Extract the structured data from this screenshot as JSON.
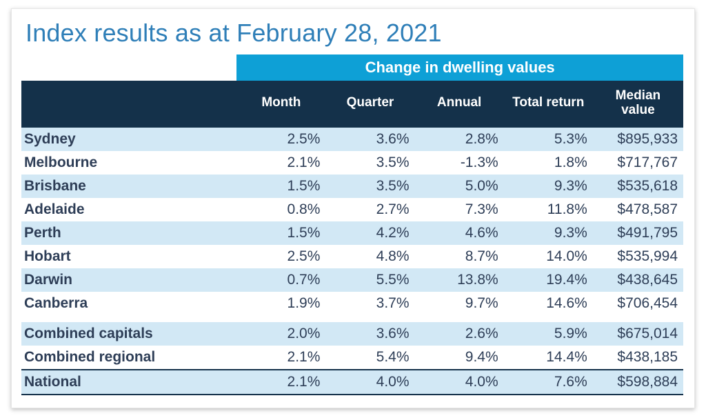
{
  "style": {
    "title_color": "#2f7fb8",
    "super_header_bg": "#0ea0d6",
    "header_row_bg": "#14314a",
    "header_text_color": "#ffffff",
    "row_label_color": "#2e3e57",
    "cell_text_color": "#2e3e57",
    "stripe_color": "#d2e8f5",
    "national_border_color": "#14314a",
    "title_fontsize": 36,
    "header_fontsize": 19,
    "body_fontsize": 21
  },
  "title": "Index results as at February 28, 2021",
  "table": {
    "super_header": "Change in dwelling values",
    "columns": [
      "Month",
      "Quarter",
      "Annual",
      "Total return",
      "Median\nvalue"
    ],
    "rows": [
      {
        "label": "Sydney",
        "month": "2.5%",
        "quarter": "3.6%",
        "annual": "2.8%",
        "total_return": "5.3%",
        "median_value": "$895,933"
      },
      {
        "label": "Melbourne",
        "month": "2.1%",
        "quarter": "3.5%",
        "annual": "-1.3%",
        "total_return": "1.8%",
        "median_value": "$717,767"
      },
      {
        "label": "Brisbane",
        "month": "1.5%",
        "quarter": "3.5%",
        "annual": "5.0%",
        "total_return": "9.3%",
        "median_value": "$535,618"
      },
      {
        "label": "Adelaide",
        "month": "0.8%",
        "quarter": "2.7%",
        "annual": "7.3%",
        "total_return": "11.8%",
        "median_value": "$478,587"
      },
      {
        "label": "Perth",
        "month": "1.5%",
        "quarter": "4.2%",
        "annual": "4.6%",
        "total_return": "9.3%",
        "median_value": "$491,795"
      },
      {
        "label": "Hobart",
        "month": "2.5%",
        "quarter": "4.8%",
        "annual": "8.7%",
        "total_return": "14.0%",
        "median_value": "$535,994"
      },
      {
        "label": "Darwin",
        "month": "0.7%",
        "quarter": "5.5%",
        "annual": "13.8%",
        "total_return": "19.4%",
        "median_value": "$438,645"
      },
      {
        "label": "Canberra",
        "month": "1.9%",
        "quarter": "3.7%",
        "annual": "9.7%",
        "total_return": "14.6%",
        "median_value": "$706,454"
      }
    ],
    "summary_rows": [
      {
        "label": "Combined capitals",
        "month": "2.0%",
        "quarter": "3.6%",
        "annual": "2.6%",
        "total_return": "5.9%",
        "median_value": "$675,014"
      },
      {
        "label": "Combined regional",
        "month": "2.1%",
        "quarter": "5.4%",
        "annual": "9.4%",
        "total_return": "14.4%",
        "median_value": "$438,185"
      }
    ],
    "national_row": {
      "label": "National",
      "month": "2.1%",
      "quarter": "4.0%",
      "annual": "4.0%",
      "total_return": "7.6%",
      "median_value": "$598,884"
    }
  }
}
